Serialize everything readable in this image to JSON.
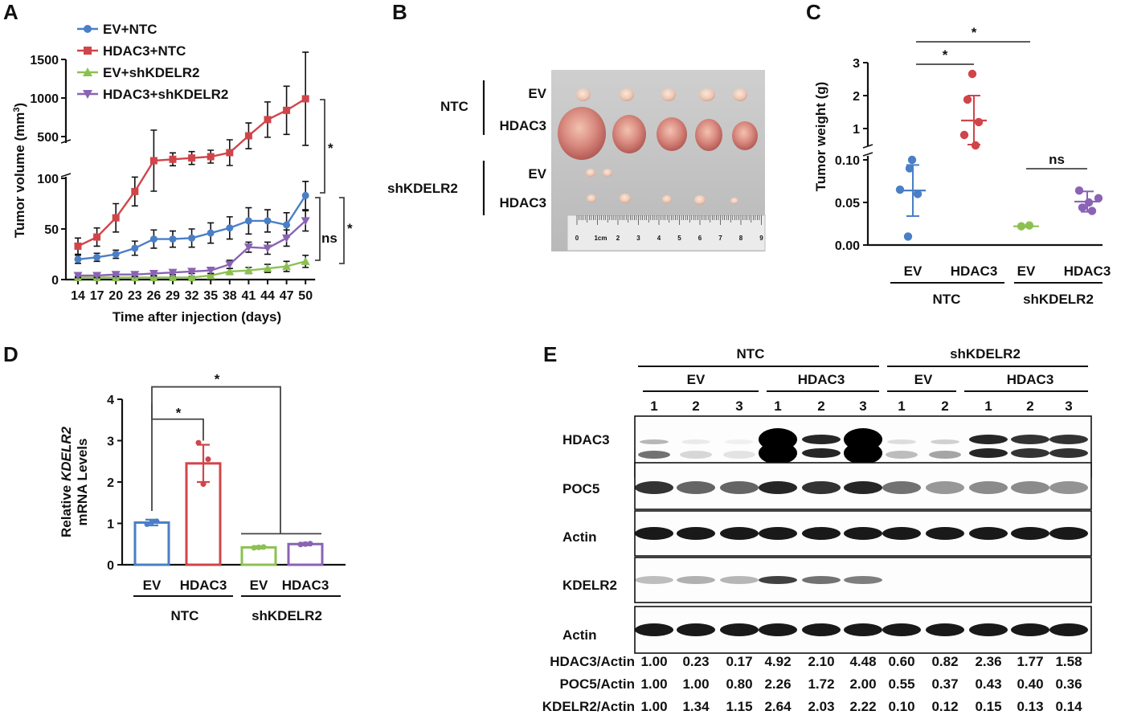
{
  "panels": {
    "A": "A",
    "B": "B",
    "C": "C",
    "D": "D",
    "E": "E"
  },
  "colors": {
    "blue": "#4a7fc6",
    "red": "#d0454a",
    "green": "#8cc152",
    "purple": "#8a63b5",
    "black": "#111111"
  },
  "chart_data": [
    {
      "panel": "A",
      "type": "line",
      "xlabel": "Time after injection (days)",
      "ylabel": "Tumor volume (mm",
      "ylabel_sup": "3",
      "ylabel_tail": ")",
      "x": [
        14,
        17,
        20,
        23,
        26,
        29,
        32,
        35,
        38,
        41,
        44,
        47,
        50
      ],
      "x_ticks": [
        "14",
        "17",
        "20",
        "23",
        "26",
        "29",
        "32",
        "35",
        "38",
        "41",
        "44",
        "47",
        "50"
      ],
      "y_scale": "broken axis: 0-100 linear below, 500-1500 above",
      "y_ticks_lower": [
        "0",
        "50",
        "100"
      ],
      "y_ticks_upper": [
        "500",
        "1000",
        "1500"
      ],
      "series": [
        {
          "name": "EV+NTC",
          "marker": "circle",
          "color": "#4a7fc6",
          "values": [
            20,
            22,
            25,
            31,
            40,
            40,
            41,
            46,
            51,
            58,
            58,
            54,
            83
          ],
          "err": [
            4,
            4,
            4,
            7,
            9,
            8,
            9,
            10,
            11,
            13,
            11,
            12,
            14
          ]
        },
        {
          "name": "HDAC3+NTC",
          "marker": "square",
          "color": "#d0454a",
          "values": [
            33,
            42,
            61,
            87,
            300,
            310,
            320,
            330,
            360,
            510,
            720,
            840,
            990
          ],
          "err": [
            8,
            9,
            14,
            25,
            60,
            20,
            20,
            20,
            60,
            90,
            140,
            200,
            420
          ]
        },
        {
          "name": "EV+shKDELR2",
          "marker": "triangle-up",
          "color": "#8cc152",
          "values": [
            2,
            2,
            2,
            2,
            2,
            2,
            2,
            4,
            8,
            9,
            11,
            13,
            18
          ],
          "err": [
            1,
            1,
            1,
            1,
            1,
            1,
            1,
            2,
            3,
            3,
            4,
            5,
            6
          ]
        },
        {
          "name": "HDAC3+shKDELR2",
          "marker": "triangle-down",
          "color": "#8a63b5",
          "values": [
            4,
            4,
            5,
            5,
            6,
            7,
            8,
            9,
            15,
            32,
            31,
            41,
            58
          ],
          "err": [
            2,
            2,
            2,
            2,
            2,
            2,
            2,
            3,
            4,
            5,
            6,
            8,
            10
          ]
        }
      ],
      "annotations": [
        "*",
        "ns",
        "*"
      ]
    },
    {
      "panel": "C",
      "type": "scatter",
      "ylabel": "Tumor weight (g)",
      "y_ticks_lower": [
        "0.00",
        "0.05",
        "0.10"
      ],
      "y_ticks_upper": [
        "1",
        "2",
        "3"
      ],
      "categories": [
        "EV",
        "HDAC3",
        "EV",
        "HDAC3"
      ],
      "groups": [
        "NTC",
        "shKDELR2"
      ],
      "series": [
        {
          "name": "NTC EV",
          "color": "#4a7fc6",
          "points": [
            0.1,
            0.09,
            0.065,
            0.06,
            0.01
          ],
          "mean": 0.064,
          "sd": 0.03
        },
        {
          "name": "NTC HDAC3",
          "color": "#d0454a",
          "points": [
            2.6,
            1.8,
            1.15,
            1.0,
            0.6
          ],
          "mean": 1.2,
          "sd": 0.8
        },
        {
          "name": "shKDELR2 EV",
          "color": "#8cc152",
          "points": [
            0.022,
            0.023
          ],
          "mean": 0.022,
          "sd": 0.001
        },
        {
          "name": "shKDELR2 HDAC3",
          "color": "#8a63b5",
          "points": [
            0.064,
            0.055,
            0.05,
            0.044,
            0.04
          ],
          "mean": 0.051,
          "sd": 0.012
        }
      ],
      "annotations": [
        "*",
        "*",
        "ns"
      ]
    },
    {
      "panel": "D",
      "type": "bar",
      "ylabel_line1_a": "Relative ",
      "ylabel_line1_b": "KDELR2",
      "ylabel_line2": "mRNA Levels",
      "ylim": [
        0,
        4
      ],
      "y_ticks": [
        "0",
        "1",
        "2",
        "3",
        "4"
      ],
      "categories": [
        "EV",
        "HDAC3",
        "EV",
        "HDAC3"
      ],
      "groups": [
        "NTC",
        "shKDELR2"
      ],
      "values": [
        1.02,
        2.45,
        0.42,
        0.5
      ],
      "err": [
        0.07,
        0.45,
        0.03,
        0.03
      ],
      "points": [
        [
          0.98,
          1.05,
          1.03
        ],
        [
          2.95,
          2.55,
          1.95
        ],
        [
          0.41,
          0.43,
          0.42
        ],
        [
          0.49,
          0.51,
          0.5
        ]
      ],
      "colors": [
        "#4a7fc6",
        "#d0454a",
        "#8cc152",
        "#8a63b5"
      ],
      "annotations": [
        "*",
        "*"
      ]
    }
  ],
  "photo": {
    "panel": "B",
    "group_ntc": "NTC",
    "group_sh": "shKDELR2",
    "row_labels": [
      "EV",
      "HDAC3",
      "EV",
      "HDAC3"
    ],
    "ruler_labels": [
      "0",
      "1cm",
      "2",
      "3",
      "4",
      "5",
      "6",
      "7",
      "8",
      "9"
    ]
  },
  "blot": {
    "panel": "E",
    "groups": [
      "NTC",
      "shKDELR2"
    ],
    "subgroups": [
      "EV",
      "HDAC3",
      "EV",
      "HDAC3"
    ],
    "lanes": [
      "1",
      "2",
      "3",
      "1",
      "2",
      "3",
      "1",
      "2",
      "1",
      "2",
      "3"
    ],
    "bands": [
      "HDAC3",
      "POC5",
      "Actin",
      "KDELR2",
      "Actin"
    ],
    "quant": [
      {
        "label": "HDAC3/Actin",
        "values": [
          "1.00",
          "0.23",
          "0.17",
          "4.92",
          "2.10",
          "4.48",
          "0.60",
          "0.82",
          "2.36",
          "1.77",
          "1.58"
        ]
      },
      {
        "label": "POC5/Actin",
        "values": [
          "1.00",
          "1.00",
          "0.80",
          "2.26",
          "1.72",
          "2.00",
          "0.55",
          "0.37",
          "0.43",
          "0.40",
          "0.36"
        ]
      },
      {
        "label": "KDELR2/Actin",
        "values": [
          "1.00",
          "1.34",
          "1.15",
          "2.64",
          "2.03",
          "2.22",
          "0.10",
          "0.12",
          "0.15",
          "0.13",
          "0.14"
        ]
      }
    ]
  }
}
